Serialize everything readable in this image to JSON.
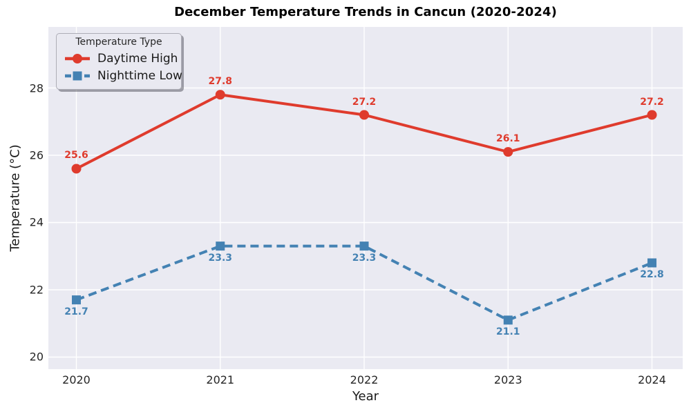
{
  "title": "December Temperature Trends in Cancun (2020-2024)",
  "legend": {
    "title": "Temperature Type",
    "entries": [
      {
        "label": "Daytime High",
        "color": "#df3b2d",
        "marker": "circle",
        "line_style": "solid"
      },
      {
        "label": "Nighttime Low",
        "color": "#4482b3",
        "marker": "square",
        "line_style": "dashed"
      }
    ]
  },
  "chart_data": {
    "type": "line",
    "title": "December Temperature Trends in Cancun (2020-2024)",
    "xlabel": "Year",
    "ylabel": "Temperature (°C)",
    "x": [
      2020,
      2021,
      2022,
      2023,
      2024
    ],
    "series": [
      {
        "name": "Daytime High",
        "values": [
          25.6,
          27.8,
          27.2,
          26.1,
          27.2
        ],
        "color": "#df3b2d",
        "marker": "circle",
        "line_style": "solid",
        "label_position": "above"
      },
      {
        "name": "Nighttime Low",
        "values": [
          21.7,
          23.3,
          23.3,
          21.1,
          22.8
        ],
        "color": "#4482b3",
        "marker": "square",
        "line_style": "dashed",
        "label_position": "below"
      }
    ],
    "xticks": [
      2020,
      2021,
      2022,
      2023,
      2024
    ],
    "yticks": [
      20,
      22,
      24,
      26,
      28
    ],
    "xlim": [
      2019.8055,
      2024.2135
    ],
    "ylim": [
      19.641,
      29.8154
    ],
    "grid": true,
    "legend_position": "upper left"
  },
  "colors": {
    "plot_background": "#eaeaf2",
    "grid_line": "#ffffff",
    "tick_text": "#262626",
    "title_text": "#000000"
  }
}
